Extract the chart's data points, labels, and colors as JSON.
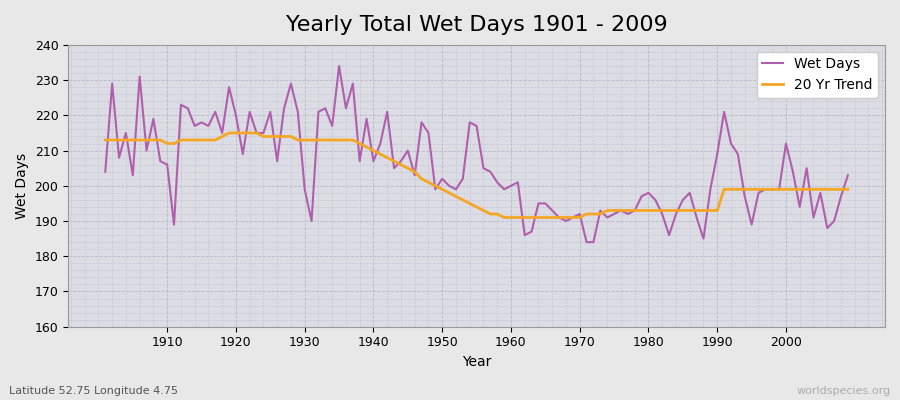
{
  "title": "Yearly Total Wet Days 1901 - 2009",
  "xlabel": "Year",
  "ylabel": "Wet Days",
  "subtitle": "Latitude 52.75 Longitude 4.75",
  "watermark": "worldspecies.org",
  "years": [
    1901,
    1902,
    1903,
    1904,
    1905,
    1906,
    1907,
    1908,
    1909,
    1910,
    1911,
    1912,
    1913,
    1914,
    1915,
    1916,
    1917,
    1918,
    1919,
    1920,
    1921,
    1922,
    1923,
    1924,
    1925,
    1926,
    1927,
    1928,
    1929,
    1930,
    1931,
    1932,
    1933,
    1934,
    1935,
    1936,
    1937,
    1938,
    1939,
    1940,
    1941,
    1942,
    1943,
    1944,
    1945,
    1946,
    1947,
    1948,
    1949,
    1950,
    1951,
    1952,
    1953,
    1954,
    1955,
    1956,
    1957,
    1958,
    1959,
    1960,
    1961,
    1962,
    1963,
    1964,
    1965,
    1966,
    1967,
    1968,
    1969,
    1970,
    1971,
    1972,
    1973,
    1974,
    1975,
    1976,
    1977,
    1978,
    1979,
    1980,
    1981,
    1982,
    1983,
    1984,
    1985,
    1986,
    1987,
    1988,
    1989,
    1990,
    1991,
    1992,
    1993,
    1994,
    1995,
    1996,
    1997,
    1998,
    1999,
    2000,
    2001,
    2002,
    2003,
    2004,
    2005,
    2006,
    2007,
    2008,
    2009
  ],
  "wet_days": [
    204,
    229,
    208,
    215,
    203,
    231,
    210,
    219,
    207,
    206,
    189,
    223,
    222,
    217,
    218,
    217,
    221,
    215,
    228,
    220,
    209,
    221,
    215,
    215,
    221,
    207,
    222,
    229,
    221,
    199,
    190,
    221,
    222,
    217,
    234,
    222,
    229,
    207,
    219,
    207,
    212,
    221,
    205,
    207,
    210,
    203,
    218,
    215,
    199,
    202,
    200,
    199,
    202,
    218,
    217,
    205,
    204,
    201,
    199,
    200,
    201,
    186,
    187,
    195,
    195,
    193,
    191,
    190,
    191,
    192,
    184,
    184,
    193,
    191,
    192,
    193,
    192,
    193,
    197,
    198,
    196,
    192,
    186,
    192,
    196,
    198,
    191,
    185,
    199,
    209,
    221,
    212,
    209,
    197,
    189,
    198,
    199,
    199,
    199,
    212,
    204,
    194,
    205,
    191,
    198,
    188,
    190,
    197,
    203
  ],
  "trend": [
    213,
    213,
    213,
    213,
    213,
    213,
    213,
    213,
    213,
    212,
    212,
    213,
    213,
    213,
    213,
    213,
    213,
    214,
    215,
    215,
    215,
    215,
    215,
    214,
    214,
    214,
    214,
    214,
    213,
    213,
    213,
    213,
    213,
    213,
    213,
    213,
    213,
    212,
    211,
    210,
    209,
    208,
    207,
    206,
    205,
    204,
    202,
    201,
    200,
    199,
    198,
    197,
    196,
    195,
    194,
    193,
    192,
    192,
    191,
    191,
    191,
    191,
    191,
    191,
    191,
    191,
    191,
    191,
    191,
    191,
    192,
    192,
    192,
    193,
    193,
    193,
    193,
    193,
    193,
    193,
    193,
    193,
    193,
    193,
    193,
    193,
    193,
    193,
    193,
    193,
    199,
    199,
    199,
    199,
    199,
    199,
    199,
    199,
    199,
    199,
    199,
    199,
    199,
    199,
    199,
    199,
    199,
    199,
    199
  ],
  "wet_days_color": "#b05fad",
  "trend_color": "#f5a623",
  "bg_color": "#e8e8e8",
  "plot_bg_color": "#dcdce4",
  "ylim": [
    160,
    240
  ],
  "yticks": [
    160,
    170,
    180,
    190,
    200,
    210,
    220,
    230,
    240
  ],
  "xticks": [
    1910,
    1920,
    1930,
    1940,
    1950,
    1960,
    1970,
    1980,
    1990,
    2000
  ],
  "title_fontsize": 16,
  "label_fontsize": 10,
  "tick_fontsize": 9,
  "linewidth_wet": 1.5,
  "linewidth_trend": 2.0
}
